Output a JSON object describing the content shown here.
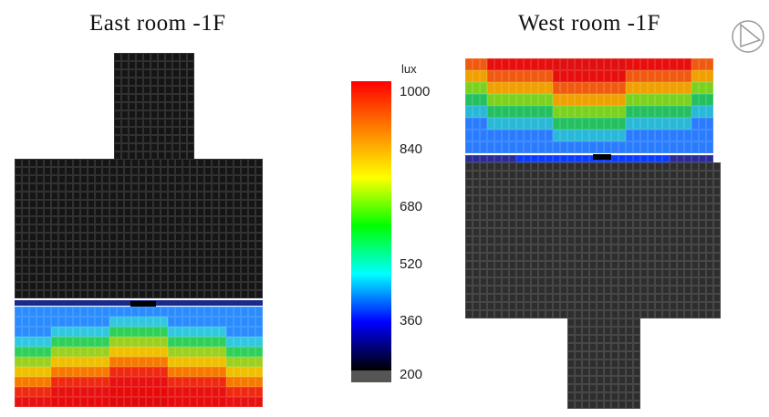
{
  "titles": {
    "east": "East room -1F",
    "west": "West room -1F"
  },
  "legend": {
    "unit": "lux",
    "ticks": [
      "1000",
      "840",
      "680",
      "520",
      "360",
      "200"
    ],
    "gradient_colors": [
      "#ff0000",
      "#ff8000",
      "#ffff00",
      "#00ff00",
      "#00ffff",
      "#0000ff",
      "#000000"
    ],
    "base_color": "#555555"
  },
  "heatmap_palette": {
    "dark_cell": "#151515",
    "west_dark_cell": "#2e2e2e",
    "window_row": "#0a3cff"
  },
  "icons": {
    "compass": "compass-icon"
  }
}
